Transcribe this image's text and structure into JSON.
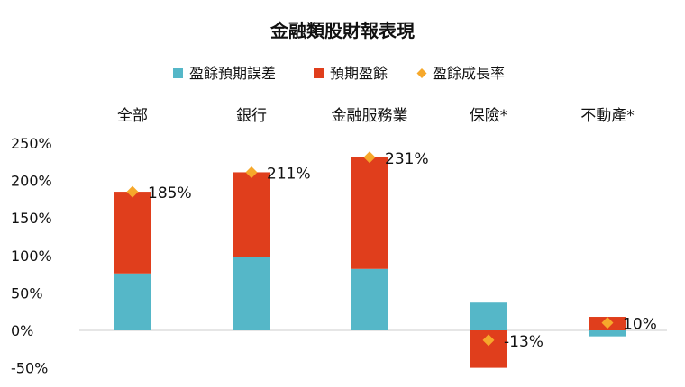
{
  "chart_data": {
    "type": "bar",
    "stacked": true,
    "title": "金融類股財報表現",
    "categories": [
      "全部",
      "銀行",
      "金融服務業",
      "保險*",
      "不動產*"
    ],
    "series": [
      {
        "name": "盈餘預期誤差",
        "kind": "bar",
        "color": "#55b7c8",
        "values": [
          76,
          98,
          82,
          37,
          -8
        ]
      },
      {
        "name": "預期盈餘",
        "kind": "bar",
        "color": "#e03e1c",
        "values": [
          109,
          113,
          149,
          -50,
          18
        ]
      },
      {
        "name": "盈餘成長率",
        "kind": "marker",
        "color": "#f6a82b",
        "values": [
          185,
          211,
          231,
          -13,
          10
        ],
        "labels": [
          "185%",
          "211%",
          "231%",
          "-13%",
          "10%"
        ]
      }
    ],
    "yticks": [
      "250%",
      "200%",
      "150%",
      "100%",
      "50%",
      "0%",
      "-50%"
    ],
    "ytick_values": [
      250,
      200,
      150,
      100,
      50,
      0,
      -50
    ],
    "ylim": [
      -50,
      250
    ],
    "legend_position": "top",
    "grid": false
  }
}
